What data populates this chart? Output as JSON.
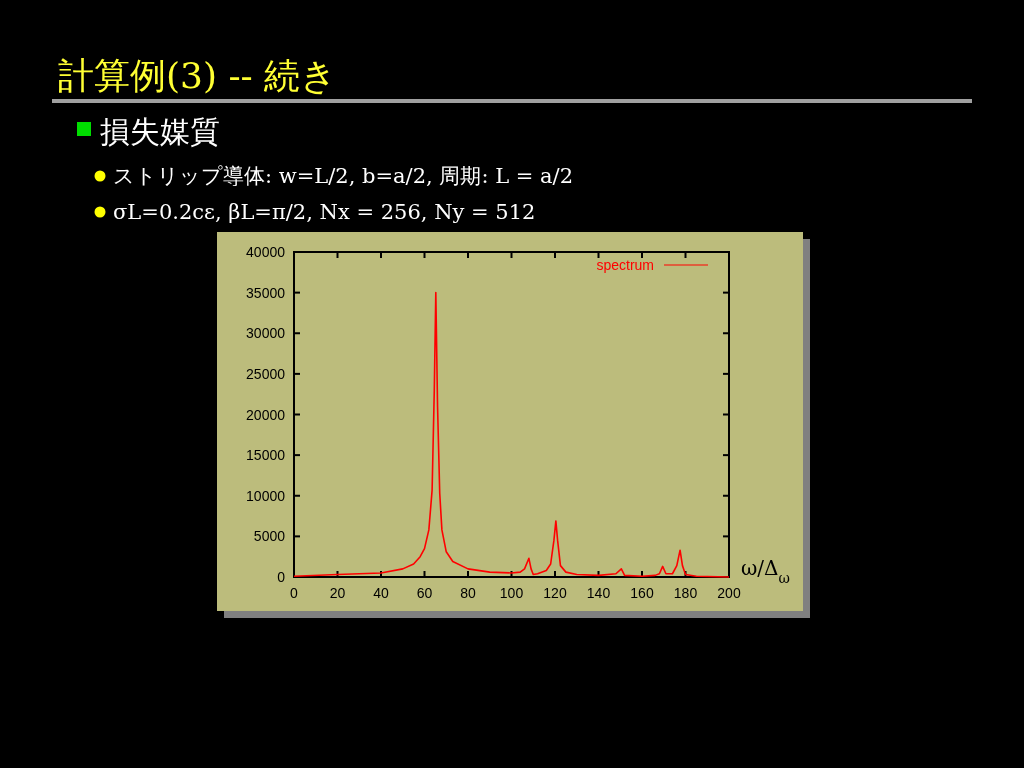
{
  "chart_data": {
    "type": "line",
    "title": "計算例(3)  --  続き",
    "subtitle": "損失媒質",
    "annotations": [
      "ストリップ導体: w=L/2,  b=a/2,  周期: L = a/2",
      "σL=0.2cε, βL=π/2, Nx = 256,  Ny = 512"
    ],
    "xlabel": "ω/Δ$_{ω}$",
    "xlim": [
      0,
      200
    ],
    "xticks": [
      0,
      20,
      40,
      60,
      80,
      100,
      120,
      140,
      160,
      180,
      200
    ],
    "ylim": [
      0,
      40000
    ],
    "yticks": [
      0,
      5000,
      10000,
      15000,
      20000,
      25000,
      30000,
      35000,
      40000
    ],
    "grid": false,
    "legend": "top right",
    "series": [
      {
        "name": "spectrum",
        "color": "#ff0000",
        "x": [
          0,
          20,
          40,
          50,
          55,
          58,
          60,
          62,
          63.5,
          64.5,
          65.2,
          66,
          67,
          68,
          70,
          73,
          80,
          90,
          100,
          104,
          106,
          108,
          109,
          110,
          112,
          116,
          118,
          119.5,
          120.4,
          121.2,
          122.5,
          125,
          130,
          140,
          148,
          150.5,
          152,
          160,
          166,
          168,
          169.5,
          171,
          174,
          176,
          177.5,
          178.6,
          180,
          185,
          200
        ],
        "values": [
          100,
          300,
          500,
          1000,
          1600,
          2500,
          3500,
          5800,
          10700,
          23000,
          35000,
          21000,
          10300,
          5800,
          3100,
          1900,
          1000,
          600,
          500,
          600,
          1000,
          2300,
          1000,
          300,
          400,
          800,
          1600,
          4500,
          6900,
          4500,
          1400,
          600,
          300,
          200,
          400,
          1000,
          200,
          100,
          200,
          400,
          1300,
          400,
          400,
          1400,
          3300,
          1400,
          300,
          100,
          0
        ]
      }
    ]
  }
}
